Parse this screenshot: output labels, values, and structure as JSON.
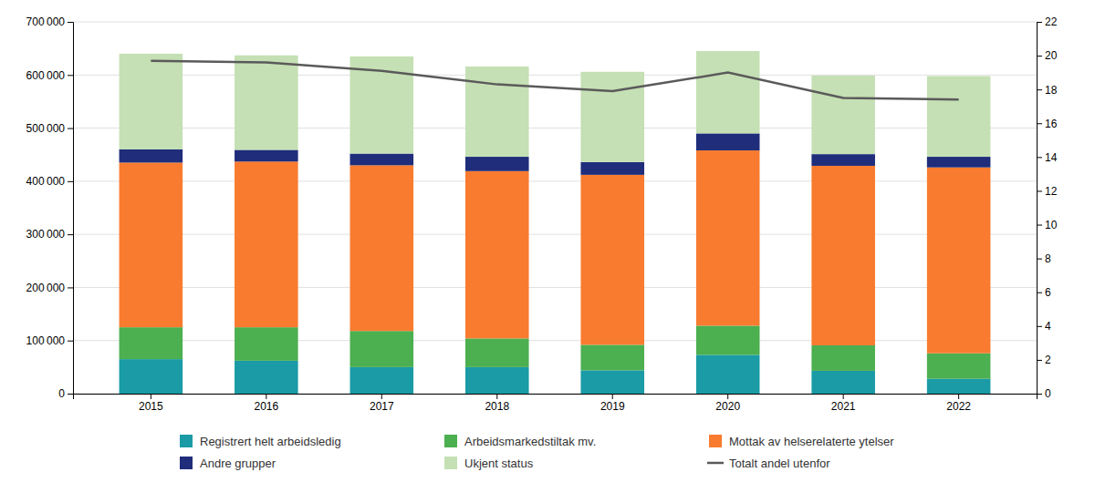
{
  "chart_data": {
    "type": "bar",
    "stacked": true,
    "grid": true,
    "legend": "bottom",
    "categories": [
      "2015",
      "2016",
      "2017",
      "2018",
      "2019",
      "2020",
      "2021",
      "2022"
    ],
    "series": [
      {
        "name": "Registrert helt arbeidsledig",
        "color": "#1A9BA6",
        "values": [
          65000,
          62000,
          50000,
          50000,
          44000,
          73000,
          43000,
          28000
        ]
      },
      {
        "name": "Arbeidsmarkedstiltak mv.",
        "color": "#4CAF50",
        "values": [
          60000,
          63000,
          68000,
          54000,
          48000,
          55000,
          48000,
          48000
        ]
      },
      {
        "name": "Mottak av helserelaterte ytelser",
        "color": "#F97B2F",
        "values": [
          310000,
          312000,
          312000,
          315000,
          320000,
          330000,
          338000,
          350000
        ]
      },
      {
        "name": "Andre grupper",
        "color": "#1F2D7B",
        "values": [
          25000,
          22000,
          22000,
          27000,
          24000,
          32000,
          22000,
          20000
        ]
      },
      {
        "name": "Ukjent status",
        "color": "#C5E0B4",
        "values": [
          180000,
          178000,
          183000,
          170000,
          170000,
          155000,
          148000,
          152000
        ]
      },
      {
        "name": "Totalt andel utenfor",
        "type": "line",
        "axis": "y2",
        "color": "#5a5a5a",
        "values": [
          19.7,
          19.6,
          19.1,
          18.3,
          17.9,
          19.0,
          17.5,
          17.4
        ]
      }
    ],
    "ylim": [
      0,
      700000
    ],
    "yticks": [
      0,
      {
        "value": 100000,
        "label": "100 000"
      },
      {
        "value": 200000,
        "label": "200 000"
      },
      {
        "value": 300000,
        "label": "300 000"
      },
      {
        "value": 400000,
        "label": "400 000"
      },
      {
        "value": 500000,
        "label": "500 000"
      },
      {
        "value": 600000,
        "label": "600 000"
      },
      {
        "value": 700000,
        "label": "700 000"
      }
    ],
    "y2lim": [
      0,
      22
    ],
    "y2ticks": [
      0,
      2,
      4,
      6,
      8,
      10,
      12,
      14,
      16,
      18,
      20,
      22
    ]
  }
}
